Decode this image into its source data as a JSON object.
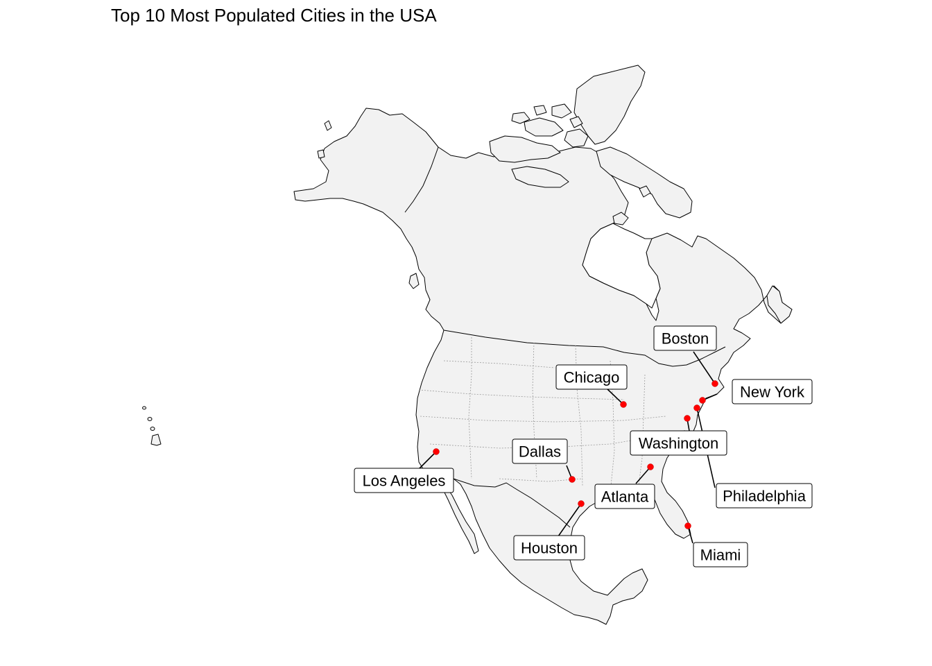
{
  "title": "Top 10 Most Populated Cities in the USA",
  "colors": {
    "land": "#f2f2f2",
    "outline": "#000000",
    "state_border": "#9a9a9a",
    "city_point": "#ff0000",
    "label_background": "#ffffff"
  },
  "cities": [
    {
      "name": "New York",
      "lat": 40.71,
      "lon": -74.01
    },
    {
      "name": "Los Angeles",
      "lat": 34.05,
      "lon": -118.24
    },
    {
      "name": "Chicago",
      "lat": 41.88,
      "lon": -87.63
    },
    {
      "name": "Houston",
      "lat": 29.76,
      "lon": -95.37
    },
    {
      "name": "Philadelphia",
      "lat": 39.95,
      "lon": -75.17
    },
    {
      "name": "Dallas",
      "lat": 32.78,
      "lon": -96.8
    },
    {
      "name": "Boston",
      "lat": 42.36,
      "lon": -71.06
    },
    {
      "name": "Washington",
      "lat": 38.91,
      "lon": -77.04
    },
    {
      "name": "Miami",
      "lat": 25.76,
      "lon": -80.19
    },
    {
      "name": "Atlanta",
      "lat": 33.75,
      "lon": -84.39
    }
  ]
}
